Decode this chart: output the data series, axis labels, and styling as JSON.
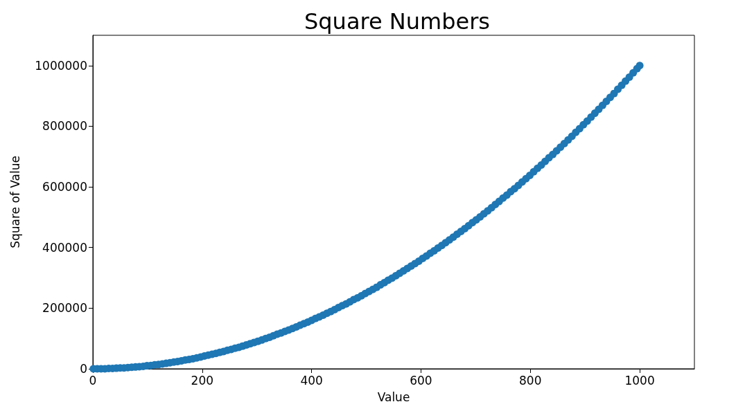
{
  "chart_data": {
    "type": "scatter",
    "title": "Square Numbers",
    "xlabel": "Value",
    "ylabel": "Square of Value",
    "x": [
      1,
      8,
      15,
      22,
      29,
      36,
      43,
      50,
      57,
      64,
      71,
      78,
      85,
      92,
      99,
      106,
      113,
      120,
      127,
      134,
      141,
      148,
      155,
      162,
      169,
      176,
      183,
      190,
      197,
      204,
      211,
      218,
      225,
      232,
      239,
      246,
      253,
      260,
      267,
      274,
      281,
      288,
      295,
      302,
      309,
      316,
      323,
      330,
      337,
      344,
      351,
      358,
      365,
      372,
      379,
      386,
      393,
      400,
      407,
      414,
      421,
      428,
      435,
      442,
      449,
      456,
      463,
      470,
      477,
      484,
      491,
      498,
      505,
      512,
      519,
      526,
      533,
      540,
      547,
      554,
      561,
      568,
      575,
      582,
      589,
      596,
      603,
      610,
      617,
      624,
      631,
      638,
      645,
      652,
      659,
      666,
      673,
      680,
      687,
      694,
      701,
      708,
      715,
      722,
      729,
      736,
      743,
      750,
      757,
      764,
      771,
      778,
      785,
      792,
      799,
      806,
      813,
      820,
      827,
      834,
      841,
      848,
      855,
      862,
      869,
      876,
      883,
      890,
      897,
      904,
      911,
      918,
      925,
      932,
      939,
      946,
      953,
      960,
      967,
      974,
      981,
      988,
      995,
      1000
    ],
    "values": [
      0,
      0,
      0,
      0,
      1000,
      1000,
      2000,
      3000,
      3000,
      4000,
      5000,
      6000,
      7000,
      8000,
      10000,
      11000,
      13000,
      14000,
      16000,
      18000,
      20000,
      22000,
      24000,
      26000,
      29000,
      31000,
      33000,
      36000,
      39000,
      42000,
      45000,
      48000,
      51000,
      54000,
      57000,
      61000,
      64000,
      68000,
      71000,
      75000,
      79000,
      83000,
      87000,
      91000,
      95000,
      100000,
      104000,
      109000,
      114000,
      118000,
      123000,
      128000,
      133000,
      138000,
      144000,
      149000,
      154000,
      160000,
      166000,
      171000,
      177000,
      183000,
      189000,
      195000,
      202000,
      208000,
      214000,
      221000,
      228000,
      234000,
      241000,
      248000,
      255000,
      262000,
      269000,
      277000,
      284000,
      292000,
      299000,
      307000,
      315000,
      323000,
      331000,
      339000,
      347000,
      355000,
      364000,
      372000,
      381000,
      389000,
      398000,
      407000,
      416000,
      425000,
      434000,
      444000,
      453000,
      462000,
      472000,
      482000,
      491000,
      501000,
      511000,
      521000,
      531000,
      542000,
      552000,
      563000,
      573000,
      584000,
      594000,
      605000,
      616000,
      627000,
      638000,
      650000,
      661000,
      672000,
      684000,
      696000,
      707000,
      719000,
      731000,
      743000,
      755000,
      767000,
      780000,
      792000,
      805000,
      817000,
      830000,
      843000,
      856000,
      869000,
      882000,
      895000,
      908000,
      922000,
      935000,
      949000,
      962000,
      976000,
      990000,
      1000000
    ],
    "color": "#1f77b4",
    "marker": "circle",
    "xlim": [
      0,
      1100
    ],
    "ylim": [
      0,
      1100000
    ],
    "xticks": [
      0,
      200,
      400,
      600,
      800,
      1000
    ],
    "yticks": [
      0,
      200000,
      400000,
      600000,
      800000,
      1000000
    ]
  }
}
